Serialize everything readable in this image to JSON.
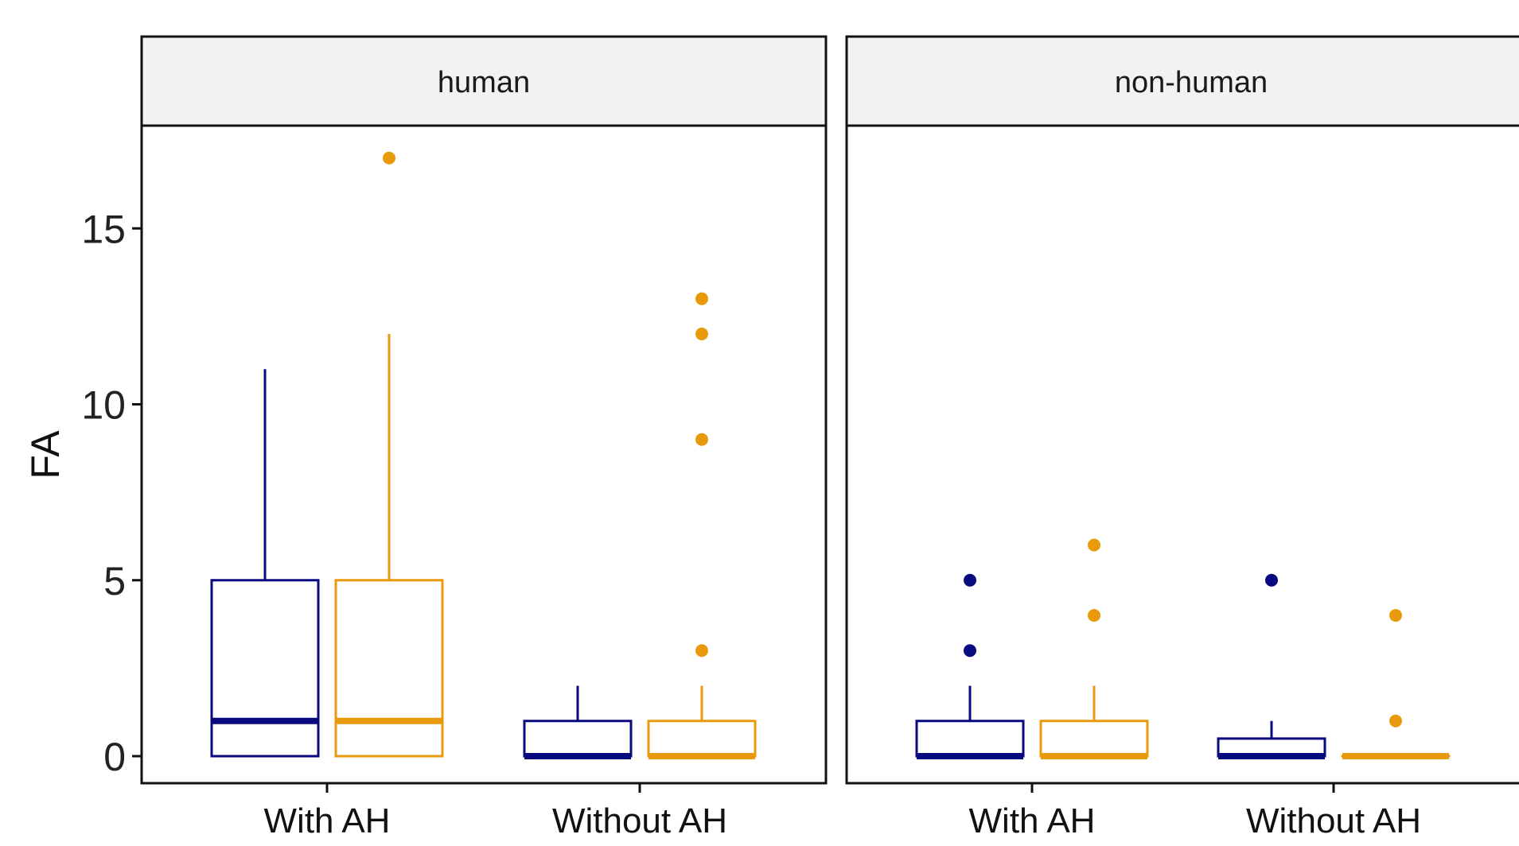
{
  "chart_data": {
    "type": "box",
    "ylabel": "FA",
    "xlabel": "",
    "ylim": [
      -0.8,
      18.2
    ],
    "yticks": [
      0,
      5,
      10,
      15
    ],
    "categories": [
      "With AH",
      "Without AH"
    ],
    "category_labels_by_panel": [
      [
        "With AH",
        "Without AH"
      ],
      [
        "With AH",
        "Without AH"
      ]
    ],
    "legend": "none",
    "grid": false,
    "series_colors": [
      "#0a0a80",
      "#e99a0c"
    ],
    "panels": [
      {
        "title": "human",
        "groups": [
          {
            "category": "With AH",
            "series_index": 0,
            "min": 0,
            "q1": 0,
            "median": 1,
            "q3": 5,
            "max": 11,
            "outliers": []
          },
          {
            "category": "With AH",
            "series_index": 1,
            "min": 0,
            "q1": 0,
            "median": 1,
            "q3": 5,
            "max": 12,
            "outliers": [
              17
            ]
          },
          {
            "category": "Without AH",
            "series_index": 0,
            "min": 0,
            "q1": 0,
            "median": 0,
            "q3": 1,
            "max": 2,
            "outliers": []
          },
          {
            "category": "Without AH",
            "series_index": 1,
            "min": 0,
            "q1": 0,
            "median": 0,
            "q3": 1,
            "max": 2,
            "outliers": [
              3,
              9,
              12,
              13
            ]
          }
        ]
      },
      {
        "title": "non-human",
        "groups": [
          {
            "category": "With AH",
            "series_index": 0,
            "min": 0,
            "q1": 0,
            "median": 0,
            "q3": 1,
            "max": 2,
            "outliers": [
              3,
              5
            ]
          },
          {
            "category": "With AH",
            "series_index": 1,
            "min": 0,
            "q1": 0,
            "median": 0,
            "q3": 1,
            "max": 2,
            "outliers": [
              4,
              6
            ]
          },
          {
            "category": "Without AH",
            "series_index": 0,
            "min": 0,
            "q1": 0,
            "median": 0,
            "q3": 0.5,
            "max": 1,
            "outliers": [
              5
            ]
          },
          {
            "category": "Without AH",
            "series_index": 1,
            "min": 0,
            "q1": 0,
            "median": 0,
            "q3": 0,
            "max": 0,
            "outliers": [
              1,
              4
            ]
          }
        ]
      }
    ]
  }
}
